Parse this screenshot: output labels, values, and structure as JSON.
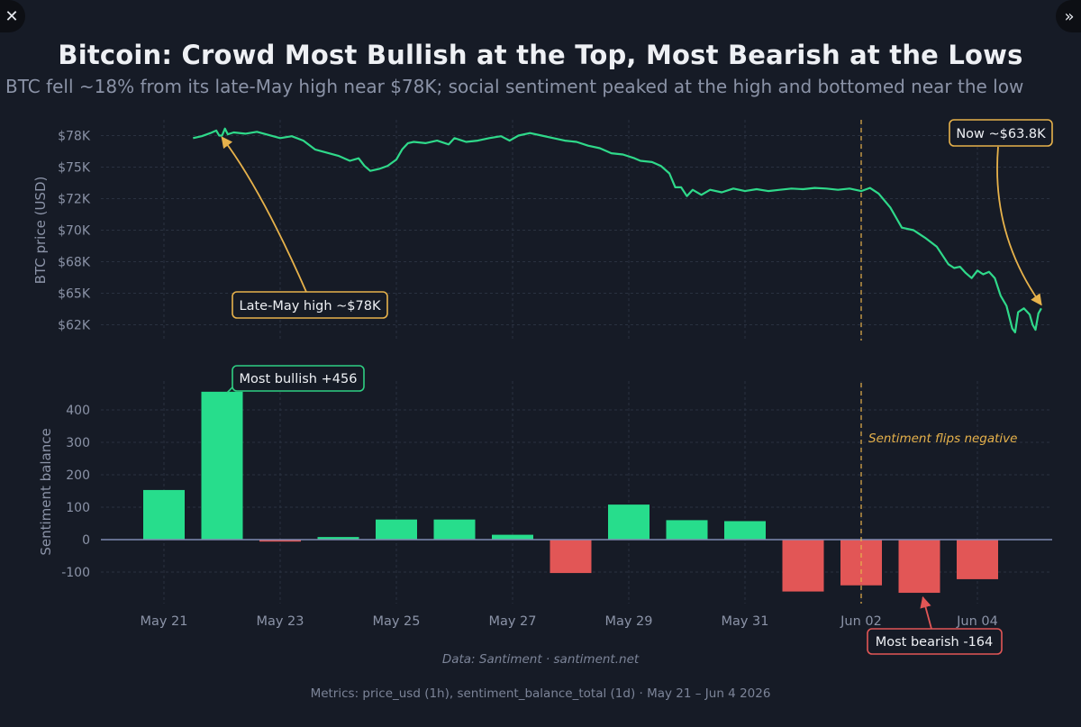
{
  "title": "Bitcoin: Crowd Most Bullish at the Top, Most Bearish at the Lows",
  "subtitle": "BTC fell ~18% from its late-May high near $78K; social sentiment peaked at the high and bottomed near the low",
  "footer": {
    "data_source": "Data: Santiment · santiment.net",
    "metrics": "Metrics: price_usd (1h), sentiment_balance_total (1d) · May 21 – Jun 4 2026"
  },
  "icons": {
    "close": "close-icon",
    "expand": "double-chevron-right-icon"
  },
  "colors": {
    "background": "#161b26",
    "price_line": "#2fd98a",
    "positive_bar": "#27dd8c",
    "negative_bar": "#e25656",
    "callout_gold": "#e7b24b",
    "callout_green": "#2fcf83",
    "callout_red": "#e25656",
    "grid": "#2a3140"
  },
  "chart_data": [
    {
      "type": "line",
      "ylabel": "BTC price (USD)",
      "y_ticks": [
        "$62K",
        "$65K",
        "$68K",
        "$70K",
        "$72K",
        "$75K",
        "$78K"
      ],
      "y_tick_values": [
        62500,
        65000,
        67500,
        70000,
        72500,
        75000,
        77500
      ],
      "xlim_days": [
        0,
        15
      ],
      "grid": true,
      "series": [
        {
          "points": [
            [
              0.5,
              77300
            ],
            [
              0.65,
              77450
            ],
            [
              0.8,
              77700
            ],
            [
              0.9,
              77900
            ],
            [
              0.95,
              77500
            ],
            [
              1.0,
              77500
            ],
            [
              1.05,
              78050
            ],
            [
              1.1,
              77600
            ],
            [
              1.2,
              77750
            ],
            [
              1.4,
              77650
            ],
            [
              1.6,
              77800
            ],
            [
              1.8,
              77550
            ],
            [
              2.0,
              77300
            ],
            [
              2.2,
              77450
            ],
            [
              2.4,
              77100
            ],
            [
              2.6,
              76400
            ],
            [
              2.8,
              76150
            ],
            [
              3.0,
              75900
            ],
            [
              3.2,
              75500
            ],
            [
              3.35,
              75700
            ],
            [
              3.45,
              75100
            ],
            [
              3.55,
              74700
            ],
            [
              3.7,
              74850
            ],
            [
              3.85,
              75100
            ],
            [
              4.0,
              75600
            ],
            [
              4.1,
              76400
            ],
            [
              4.2,
              76900
            ],
            [
              4.3,
              77000
            ],
            [
              4.5,
              76900
            ],
            [
              4.7,
              77100
            ],
            [
              4.9,
              76800
            ],
            [
              5.0,
              77300
            ],
            [
              5.2,
              77000
            ],
            [
              5.4,
              77100
            ],
            [
              5.6,
              77300
            ],
            [
              5.8,
              77450
            ],
            [
              5.95,
              77100
            ],
            [
              6.1,
              77500
            ],
            [
              6.3,
              77700
            ],
            [
              6.5,
              77500
            ],
            [
              6.7,
              77300
            ],
            [
              6.9,
              77100
            ],
            [
              7.1,
              77000
            ],
            [
              7.3,
              76700
            ],
            [
              7.5,
              76500
            ],
            [
              7.7,
              76100
            ],
            [
              7.9,
              76000
            ],
            [
              8.1,
              75700
            ],
            [
              8.2,
              75500
            ],
            [
              8.4,
              75400
            ],
            [
              8.55,
              75100
            ],
            [
              8.7,
              74500
            ],
            [
              8.8,
              73400
            ],
            [
              8.9,
              73400
            ],
            [
              9.0,
              72700
            ],
            [
              9.1,
              73200
            ],
            [
              9.25,
              72800
            ],
            [
              9.4,
              73200
            ],
            [
              9.6,
              73000
            ],
            [
              9.8,
              73300
            ],
            [
              10.0,
              73100
            ],
            [
              10.2,
              73250
            ],
            [
              10.4,
              73100
            ],
            [
              10.6,
              73200
            ],
            [
              10.8,
              73300
            ],
            [
              11.0,
              73250
            ],
            [
              11.2,
              73350
            ],
            [
              11.4,
              73300
            ],
            [
              11.6,
              73200
            ],
            [
              11.8,
              73300
            ],
            [
              12.0,
              73100
            ],
            [
              12.15,
              73350
            ],
            [
              12.3,
              72900
            ],
            [
              12.5,
              71800
            ],
            [
              12.6,
              71000
            ],
            [
              12.7,
              70200
            ],
            [
              12.9,
              70000
            ],
            [
              13.1,
              69400
            ],
            [
              13.3,
              68700
            ],
            [
              13.5,
              67300
            ],
            [
              13.6,
              67000
            ],
            [
              13.7,
              67100
            ],
            [
              13.8,
              66600
            ],
            [
              13.9,
              66200
            ],
            [
              14.0,
              66800
            ],
            [
              14.1,
              66500
            ],
            [
              14.2,
              66700
            ],
            [
              14.3,
              66200
            ],
            [
              14.4,
              64800
            ],
            [
              14.5,
              64000
            ],
            [
              14.55,
              63100
            ],
            [
              14.6,
              62200
            ],
            [
              14.65,
              61900
            ],
            [
              14.7,
              63500
            ],
            [
              14.8,
              63800
            ],
            [
              14.9,
              63300
            ],
            [
              14.95,
              62500
            ],
            [
              15.0,
              62100
            ],
            [
              15.05,
              63400
            ],
            [
              15.1,
              63800
            ]
          ]
        }
      ],
      "vline_x_day": 12.0,
      "annotations": [
        {
          "text": "Late-May high  ~$78K",
          "point": [
            0.95,
            77800
          ]
        },
        {
          "text": "Now  ~$63.8K",
          "point": [
            15.1,
            63800
          ]
        }
      ]
    },
    {
      "type": "bar",
      "ylabel": "Sentiment balance",
      "ylim": [
        -200,
        480
      ],
      "y_ticks": [
        -100,
        0,
        100,
        200,
        300,
        400
      ],
      "grid": true,
      "categories": [
        "May 21",
        "May 22",
        "May 23",
        "May 24",
        "May 25",
        "May 26",
        "May 27",
        "May 28",
        "May 29",
        "May 30",
        "May 31",
        "Jun 01",
        "Jun 02",
        "Jun 03",
        "Jun 04"
      ],
      "x_ticks": [
        "May 21",
        "May 23",
        "May 25",
        "May 27",
        "May 29",
        "May 31",
        "Jun 02",
        "Jun 04"
      ],
      "values": [
        153,
        456,
        -6,
        8,
        62,
        62,
        15,
        -103,
        108,
        60,
        57,
        -160,
        -141,
        -164,
        -122
      ],
      "vline_x_day": 12.0,
      "vline_label": "Sentiment flips negative",
      "annotations": [
        {
          "text": "Most bullish  +456",
          "category": "May 22",
          "value": 456
        },
        {
          "text": "Most bearish  -164",
          "category": "Jun 03",
          "value": -164
        }
      ]
    }
  ]
}
